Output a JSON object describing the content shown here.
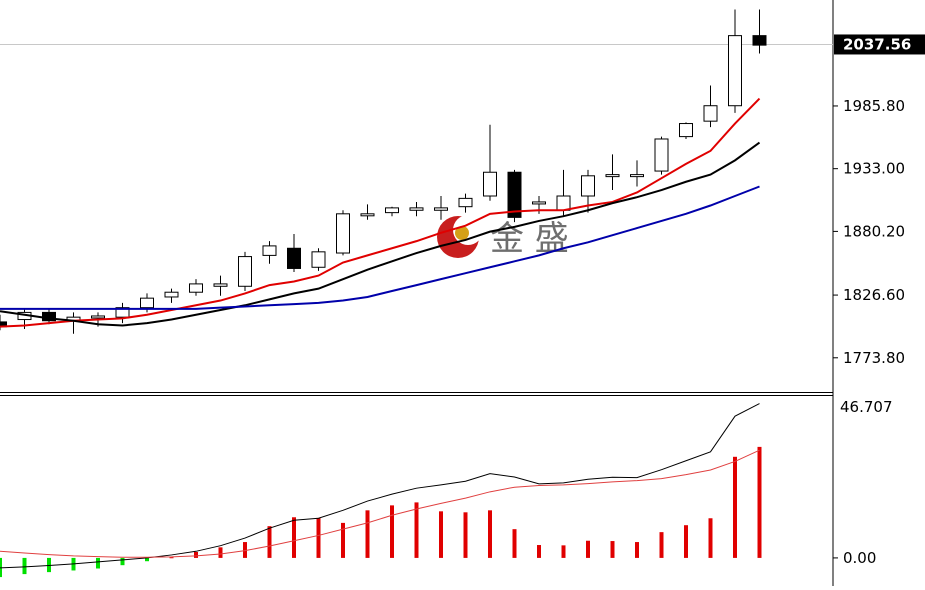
{
  "watermark": {
    "text": "金 盛",
    "logo": "jinsheng-logo"
  },
  "chart_data": [
    {
      "type": "candlestick",
      "yticks": [
        1773.8,
        1826.6,
        1880.2,
        1933.0,
        1985.8
      ],
      "ytick_labels": [
        "1773.80",
        "1826.60",
        "1880.20",
        "1933.00",
        "1985.80"
      ],
      "current_price": 2037.56,
      "current_price_label": "2037.56",
      "ylim": [
        1745,
        2075
      ],
      "grid": false,
      "candles": [
        {
          "o": 1804,
          "h": 1810,
          "l": 1797,
          "c": 1800
        },
        {
          "o": 1806,
          "h": 1815,
          "l": 1798,
          "c": 1812
        },
        {
          "o": 1812,
          "h": 1815,
          "l": 1802,
          "c": 1805
        },
        {
          "o": 1805,
          "h": 1812,
          "l": 1794,
          "c": 1808
        },
        {
          "o": 1808,
          "h": 1812,
          "l": 1800,
          "c": 1809
        },
        {
          "o": 1808,
          "h": 1820,
          "l": 1803,
          "c": 1816
        },
        {
          "o": 1816,
          "h": 1828,
          "l": 1812,
          "c": 1824
        },
        {
          "o": 1825,
          "h": 1832,
          "l": 1820,
          "c": 1829
        },
        {
          "o": 1829,
          "h": 1840,
          "l": 1826,
          "c": 1836
        },
        {
          "o": 1834,
          "h": 1843,
          "l": 1826,
          "c": 1836
        },
        {
          "o": 1834,
          "h": 1863,
          "l": 1830,
          "c": 1859
        },
        {
          "o": 1860,
          "h": 1872,
          "l": 1853,
          "c": 1868
        },
        {
          "o": 1866,
          "h": 1878,
          "l": 1846,
          "c": 1849
        },
        {
          "o": 1850,
          "h": 1866,
          "l": 1847,
          "c": 1863
        },
        {
          "o": 1862,
          "h": 1898,
          "l": 1860,
          "c": 1895
        },
        {
          "o": 1894,
          "h": 1903,
          "l": 1890,
          "c": 1895
        },
        {
          "o": 1896,
          "h": 1901,
          "l": 1893,
          "c": 1900
        },
        {
          "o": 1898,
          "h": 1905,
          "l": 1893,
          "c": 1900
        },
        {
          "o": 1898,
          "h": 1910,
          "l": 1890,
          "c": 1900
        },
        {
          "o": 1901,
          "h": 1912,
          "l": 1896,
          "c": 1908
        },
        {
          "o": 1910,
          "h": 1970,
          "l": 1906,
          "c": 1930
        },
        {
          "o": 1930,
          "h": 1932,
          "l": 1888,
          "c": 1892
        },
        {
          "o": 1904,
          "h": 1910,
          "l": 1895,
          "c": 1905
        },
        {
          "o": 1898,
          "h": 1932,
          "l": 1893,
          "c": 1910
        },
        {
          "o": 1910,
          "h": 1932,
          "l": 1896,
          "c": 1927
        },
        {
          "o": 1927,
          "h": 1945,
          "l": 1915,
          "c": 1928
        },
        {
          "o": 1928,
          "h": 1940,
          "l": 1918,
          "c": 1928
        },
        {
          "o": 1931,
          "h": 1960,
          "l": 1928,
          "c": 1958
        },
        {
          "o": 1960,
          "h": 1972,
          "l": 1958,
          "c": 1971
        },
        {
          "o": 1973,
          "h": 2003,
          "l": 1968,
          "c": 1986
        },
        {
          "o": 1986,
          "h": 2067,
          "l": 1980,
          "c": 2045
        },
        {
          "o": 2045,
          "h": 2067,
          "l": 2030,
          "c": 2037
        }
      ],
      "series": [
        {
          "color": "#e00000",
          "values": [
            1800,
            1801,
            1803,
            1805,
            1806,
            1807,
            1810,
            1814,
            1818,
            1822,
            1828,
            1835,
            1838,
            1843,
            1854,
            1860,
            1866,
            1872,
            1879,
            1885,
            1895,
            1897,
            1898,
            1898,
            1902,
            1905,
            1913,
            1925,
            1937,
            1948,
            1971,
            1992
          ]
        },
        {
          "color": "#000000",
          "values": [
            1813,
            1810,
            1807,
            1805,
            1802,
            1801,
            1803,
            1806,
            1810,
            1814,
            1818,
            1823,
            1828,
            1832,
            1840,
            1848,
            1855,
            1862,
            1868,
            1873,
            1880,
            1884,
            1889,
            1893,
            1898,
            1904,
            1909,
            1915,
            1922,
            1928,
            1940,
            1955
          ]
        },
        {
          "color": "#0000aa",
          "values": [
            1815,
            1815,
            1815,
            1815,
            1815,
            1815,
            1815,
            1815,
            1815,
            1816,
            1817,
            1818,
            1819,
            1820,
            1822,
            1825,
            1830,
            1835,
            1840,
            1845,
            1850,
            1855,
            1860,
            1866,
            1871,
            1877,
            1883,
            1889,
            1895,
            1902,
            1910,
            1918
          ]
        }
      ]
    },
    {
      "type": "histogram",
      "yticks": [
        0.0
      ],
      "ytick_labels": [
        "0.00"
      ],
      "max_label": "46.707",
      "ylim": [
        -8.5,
        49
      ],
      "grid": false,
      "bars": [
        -5.8,
        -4.9,
        -4.3,
        -3.8,
        -3.2,
        -2.2,
        -1.0,
        0.2,
        1.8,
        3.2,
        4.8,
        9.6,
        12.3,
        12.1,
        10.6,
        14.4,
        15.9,
        16.8,
        14.1,
        13.8,
        14.4,
        8.7,
        3.9,
        3.8,
        5.2,
        5.1,
        4.8,
        7.8,
        9.9,
        12.0,
        30.6,
        33.6
      ],
      "series": [
        {
          "color": "#000000",
          "values": [
            -3.0,
            -2.7,
            -2.3,
            -1.8,
            -1.2,
            -0.6,
            0.0,
            0.9,
            2.0,
            3.7,
            6.0,
            9.0,
            11.4,
            12.0,
            14.4,
            17.2,
            19.3,
            21.1,
            22.1,
            23.2,
            25.5,
            24.5,
            22.4,
            22.7,
            23.8,
            24.4,
            24.3,
            26.7,
            29.4,
            32.1,
            42.9,
            46.7
          ]
        },
        {
          "color": "#e04040",
          "values": [
            2.0,
            1.5,
            1.0,
            0.6,
            0.4,
            0.2,
            0.2,
            0.3,
            0.6,
            1.2,
            2.2,
            3.6,
            5.2,
            6.8,
            8.7,
            10.6,
            12.9,
            14.8,
            16.5,
            18.1,
            20.0,
            21.4,
            21.9,
            22.1,
            22.5,
            23.0,
            23.4,
            24.0,
            25.2,
            26.6,
            29.2,
            32.6
          ]
        }
      ]
    }
  ]
}
